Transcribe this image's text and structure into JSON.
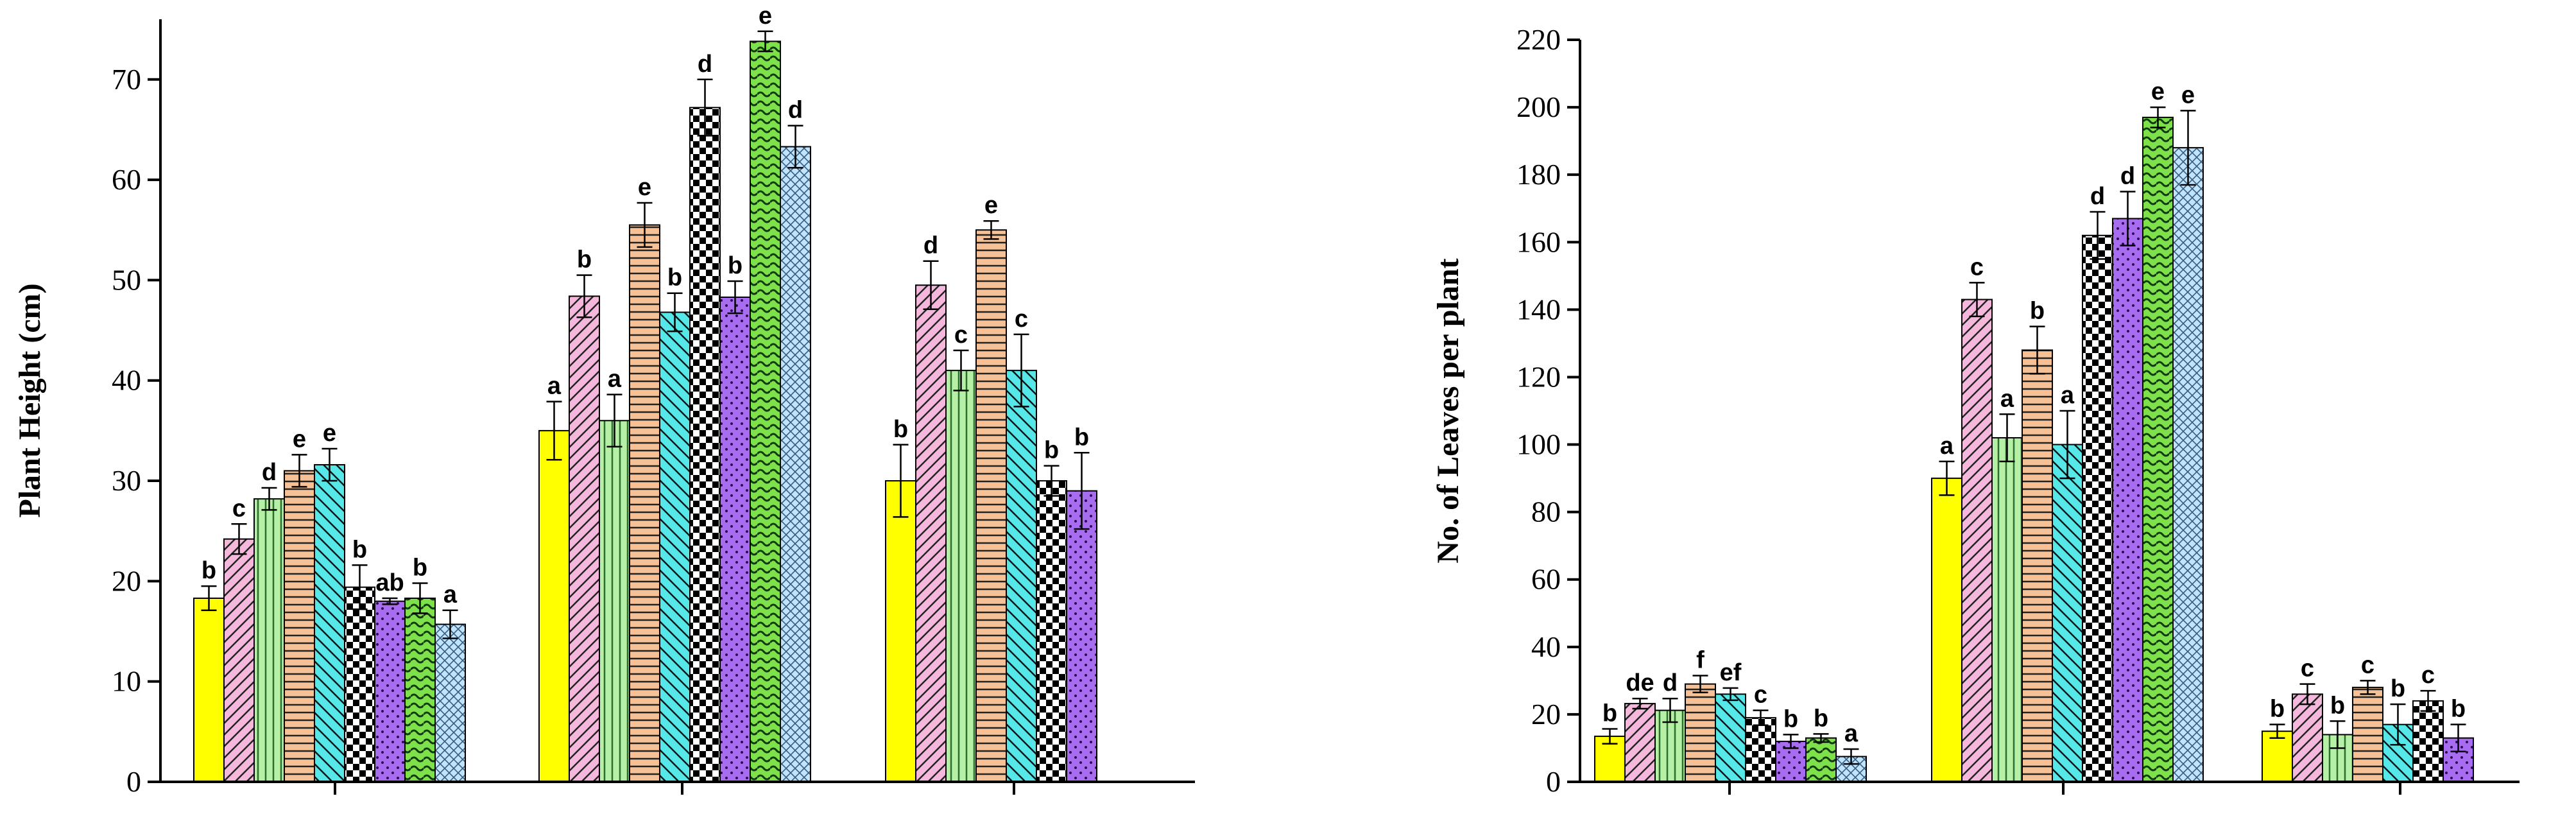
{
  "chart_data": [
    {
      "type": "bar",
      "title": "",
      "xlabel": "",
      "ylabel": "Plant Height (cm)",
      "ylim": [
        0,
        76
      ],
      "yticks": [
        0,
        10,
        20,
        30,
        40,
        50,
        60,
        70
      ],
      "grid": false,
      "groups": [
        {
          "values": [
            18.3,
            24.2,
            28.2,
            31.0,
            31.6,
            19.4,
            18.0,
            18.3,
            15.7
          ],
          "errors": [
            1.2,
            1.5,
            1.1,
            1.6,
            1.6,
            2.2,
            0.3,
            1.5,
            1.4
          ],
          "labels": [
            "b",
            "c",
            "d",
            "e",
            "e",
            "b",
            "ab",
            "b",
            "a"
          ]
        },
        {
          "values": [
            35.0,
            48.4,
            36.0,
            55.5,
            46.8,
            67.2,
            48.3,
            73.8,
            63.3
          ],
          "errors": [
            2.9,
            2.1,
            2.6,
            2.2,
            1.9,
            2.8,
            1.6,
            1.0,
            2.1
          ],
          "labels": [
            "a",
            "b",
            "a",
            "e",
            "b",
            "d",
            "b",
            "e",
            "d"
          ]
        },
        {
          "values": [
            30.0,
            49.5,
            41.0,
            55.0,
            41.0,
            30.0,
            29.0
          ],
          "errors": [
            3.6,
            2.4,
            2.0,
            0.9,
            3.6,
            1.5,
            3.8
          ],
          "labels": [
            "b",
            "d",
            "c",
            "e",
            "c",
            "b",
            "b"
          ]
        }
      ]
    },
    {
      "type": "bar",
      "title": "",
      "xlabel": "",
      "ylabel": "No. of Leaves per plant",
      "ylim": [
        0,
        220
      ],
      "yticks": [
        0,
        20,
        40,
        60,
        80,
        100,
        120,
        140,
        160,
        180,
        200,
        220
      ],
      "grid": false,
      "groups": [
        {
          "values": [
            13.5,
            23.2,
            21.2,
            29.0,
            26.0,
            19.0,
            12.0,
            13.0,
            7.5
          ],
          "errors": [
            2.2,
            1.5,
            3.5,
            2.5,
            1.8,
            2.2,
            2.0,
            1.2,
            2.2
          ],
          "labels": [
            "b",
            "de",
            "d",
            "f",
            "ef",
            "c",
            "b",
            "b",
            "a"
          ]
        },
        {
          "values": [
            90,
            143,
            102,
            128,
            100,
            162,
            167,
            197,
            188
          ],
          "errors": [
            5,
            5,
            7,
            7,
            10,
            7,
            8,
            3,
            11
          ],
          "labels": [
            "a",
            "c",
            "a",
            "b",
            "a",
            "d",
            "d",
            "e",
            "e"
          ]
        },
        {
          "values": [
            15,
            26,
            14,
            28,
            17,
            24,
            13
          ],
          "errors": [
            2,
            3,
            4,
            2,
            6,
            3,
            4
          ],
          "labels": [
            "b",
            "c",
            "b",
            "c",
            "b",
            "c",
            "b"
          ]
        }
      ]
    }
  ]
}
